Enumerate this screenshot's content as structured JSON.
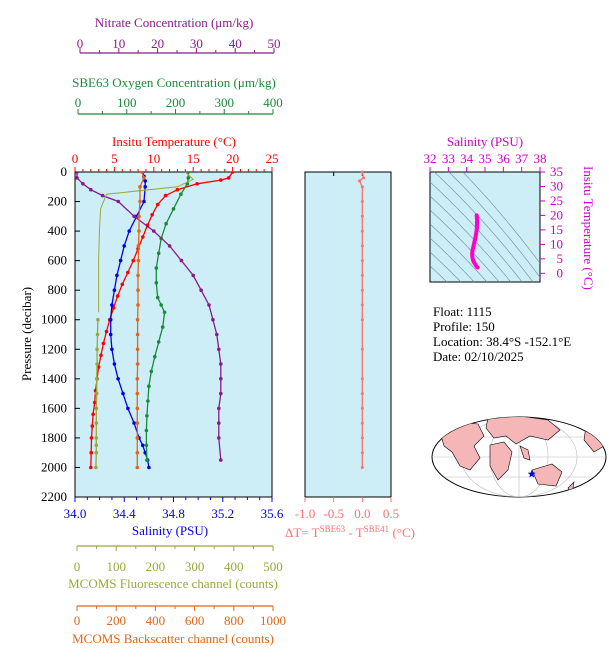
{
  "colors": {
    "nitrate": "#8b1a8b",
    "oxygen": "#1a8a3a",
    "temperature": "#ff0000",
    "salinity": "#0000ee",
    "fluorescence": "#9aa83a",
    "backscatter": "#e0661a",
    "delta_t": "#ff7070",
    "ts_line": "#ff00cc",
    "plot_bg": "#cdeef6"
  },
  "top_axes": {
    "nitrate": {
      "title": "Nitrate Concentration (μm/kg)",
      "ticks": [
        "0",
        "10",
        "20",
        "30",
        "40",
        "50"
      ]
    },
    "oxygen": {
      "title": "SBE63 Oxygen Concentration (μm/kg)",
      "ticks": [
        "0",
        "100",
        "200",
        "300",
        "400"
      ]
    },
    "temperature": {
      "title": "Insitu Temperature (°C)",
      "ticks": [
        "0",
        "5",
        "10",
        "15",
        "20",
        "25"
      ]
    }
  },
  "bottom_axes": {
    "salinity": {
      "title": "Salinity (PSU)",
      "ticks": [
        "34.0",
        "34.4",
        "34.8",
        "35.2",
        "35.6"
      ]
    },
    "fluorescence": {
      "title": "MCOMS Fluorescence channel (counts)",
      "ticks": [
        "0",
        "100",
        "200",
        "300",
        "400",
        "500"
      ]
    },
    "backscatter": {
      "title": "MCOMS Backscatter channel (counts)",
      "ticks": [
        "0",
        "200",
        "400",
        "600",
        "800",
        "1000"
      ]
    }
  },
  "pressure_axis": {
    "title": "Pressure (decibar)",
    "ticks": [
      "0",
      "200",
      "400",
      "600",
      "800",
      "1000",
      "1200",
      "1400",
      "1600",
      "1800",
      "2000",
      "2200"
    ]
  },
  "delta_axis": {
    "ticks": [
      "-1.0",
      "-0.5",
      "0.0",
      "0.5"
    ],
    "title_parts": {
      "delta": "ΔT= T",
      "sup1": "SBE63",
      "mid": " - T",
      "sup2": "SBE41",
      "unit": " (°C)"
    }
  },
  "ts_axes": {
    "title_top": "Salinity (PSU)",
    "top_ticks": [
      "32",
      "33",
      "34",
      "35",
      "36",
      "37",
      "38"
    ],
    "title_right": "Insitu Temperature (°C)",
    "right_ticks": [
      "0",
      "5",
      "10",
      "15",
      "20",
      "25",
      "30",
      "35"
    ]
  },
  "info": {
    "float": "Float:  1115",
    "profile": "Profile:  150",
    "location": "Location:  38.4°S  -152.1°E",
    "date": "Date:  02/10/2025"
  },
  "chart_data": [
    {
      "type": "line",
      "y_axis": {
        "quantity": "pressure",
        "range": [
          0,
          2200
        ],
        "inverted": true
      },
      "series": [
        {
          "variable": "temperature",
          "axis_range": [
            0,
            25
          ],
          "markers": true,
          "x": [
            20.0,
            19.5,
            18.5,
            15.5,
            13.0,
            11.5,
            10.5,
            9.8,
            9.2,
            8.6,
            8.0,
            7.4,
            6.7,
            6.0,
            5.4,
            4.9,
            4.4,
            4.0,
            3.6,
            3.3,
            3.0,
            2.8,
            2.6,
            2.5,
            2.3,
            2.2,
            2.1,
            2.05,
            2.0
          ],
          "y": [
            0,
            40,
            55,
            80,
            120,
            160,
            220,
            290,
            360,
            440,
            520,
            600,
            680,
            760,
            840,
            920,
            1000,
            1080,
            1160,
            1240,
            1320,
            1400,
            1480,
            1560,
            1640,
            1720,
            1800,
            1900,
            2000
          ]
        },
        {
          "variable": "salinity",
          "axis_range": [
            34.0,
            35.6
          ],
          "markers": true,
          "x": [
            34.55,
            34.56,
            34.57,
            34.57,
            34.56,
            34.5,
            34.44,
            34.4,
            34.37,
            34.34,
            34.32,
            34.3,
            34.29,
            34.29,
            34.3,
            34.32,
            34.35,
            34.39,
            34.43,
            34.48,
            34.52,
            34.55,
            34.57,
            34.59,
            34.6
          ],
          "y": [
            0,
            30,
            60,
            100,
            200,
            300,
            400,
            500,
            600,
            700,
            800,
            900,
            1000,
            1100,
            1200,
            1300,
            1400,
            1500,
            1600,
            1700,
            1800,
            1850,
            1900,
            1950,
            2000
          ]
        },
        {
          "variable": "oxygen",
          "axis_range": [
            0,
            400
          ],
          "markers": true,
          "x": [
            230,
            230,
            228,
            215,
            200,
            185,
            175,
            170,
            165,
            165,
            168,
            175,
            182,
            178,
            170,
            162,
            155,
            150,
            148,
            146,
            145,
            145,
            146
          ],
          "y": [
            0,
            40,
            80,
            150,
            250,
            350,
            450,
            550,
            650,
            750,
            850,
            900,
            950,
            1050,
            1150,
            1250,
            1350,
            1450,
            1550,
            1650,
            1750,
            1850,
            1950
          ]
        },
        {
          "variable": "nitrate",
          "axis_range": [
            0,
            50
          ],
          "markers": true,
          "x": [
            0.5,
            0.5,
            2,
            4,
            7,
            11,
            15,
            20,
            24,
            27,
            30,
            32,
            34,
            35,
            36,
            36.5,
            37,
            37,
            37,
            36.5,
            36.5,
            36.5,
            37
          ],
          "y": [
            0,
            40,
            80,
            120,
            160,
            200,
            300,
            400,
            500,
            600,
            700,
            800,
            900,
            1000,
            1100,
            1200,
            1300,
            1400,
            1500,
            1600,
            1700,
            1800,
            1950
          ]
        },
        {
          "variable": "fluorescence",
          "axis_range": [
            0,
            500
          ],
          "markers": false,
          "x": [
            280,
            300,
            260,
            80,
            65,
            62,
            60,
            60,
            60
          ],
          "y": [
            0,
            50,
            100,
            150,
            250,
            400,
            600,
            800,
            950
          ]
        },
        {
          "variable": "fluorescence",
          "axis_range": [
            0,
            500
          ],
          "markers": true,
          "x": [
            58,
            57,
            56,
            56,
            55,
            55,
            54,
            54,
            54,
            54,
            54,
            53
          ],
          "y": [
            1000,
            1100,
            1200,
            1300,
            1400,
            1500,
            1600,
            1700,
            1800,
            1850,
            1900,
            2000
          ]
        },
        {
          "variable": "backscatter",
          "axis_range": [
            0,
            1000
          ],
          "markers": true,
          "x": [
            340,
            350,
            330,
            330,
            325,
            325,
            322,
            322,
            320,
            320,
            320,
            318,
            318,
            318,
            318,
            316,
            316,
            316,
            316,
            316,
            316,
            316
          ],
          "y": [
            0,
            40,
            100,
            200,
            300,
            400,
            500,
            600,
            700,
            800,
            900,
            1000,
            1100,
            1200,
            1300,
            1400,
            1500,
            1600,
            1700,
            1800,
            1900,
            2000
          ]
        }
      ]
    },
    {
      "type": "line",
      "quantity": "delta_t",
      "x_range": [
        -1.0,
        0.5
      ],
      "y_range": [
        0,
        2200
      ],
      "x": [
        0.0,
        0.02,
        -0.05,
        0.0,
        0.0,
        0.0,
        0.0,
        0.0,
        0.0,
        0.0,
        0.0,
        0.0,
        0.0,
        0.0,
        0.0,
        0.0,
        0.0,
        0.0,
        0.0,
        0.0,
        0.0
      ],
      "y": [
        0,
        40,
        60,
        100,
        200,
        300,
        400,
        500,
        600,
        700,
        800,
        900,
        1000,
        1200,
        1400,
        1500,
        1600,
        1700,
        1800,
        1900,
        2000
      ]
    },
    {
      "type": "scatter",
      "quantity": "temperature_salinity",
      "x_range": [
        32,
        38
      ],
      "y_range": [
        -3,
        35
      ],
      "salinity": [
        34.55,
        34.57,
        34.56,
        34.5,
        34.45,
        34.4,
        34.36,
        34.32,
        34.3,
        34.3,
        34.33,
        34.37,
        34.42,
        34.48,
        34.52,
        34.55,
        34.57,
        34.6
      ],
      "temperature": [
        20.0,
        18.5,
        15.5,
        13.0,
        11.5,
        10.2,
        9.0,
        8.0,
        7.0,
        6.0,
        5.0,
        4.2,
        3.6,
        3.0,
        2.6,
        2.3,
        2.1,
        2.0
      ]
    },
    {
      "type": "map",
      "quantity": "float_location",
      "latitude": -38.4,
      "longitude": -152.1
    }
  ]
}
